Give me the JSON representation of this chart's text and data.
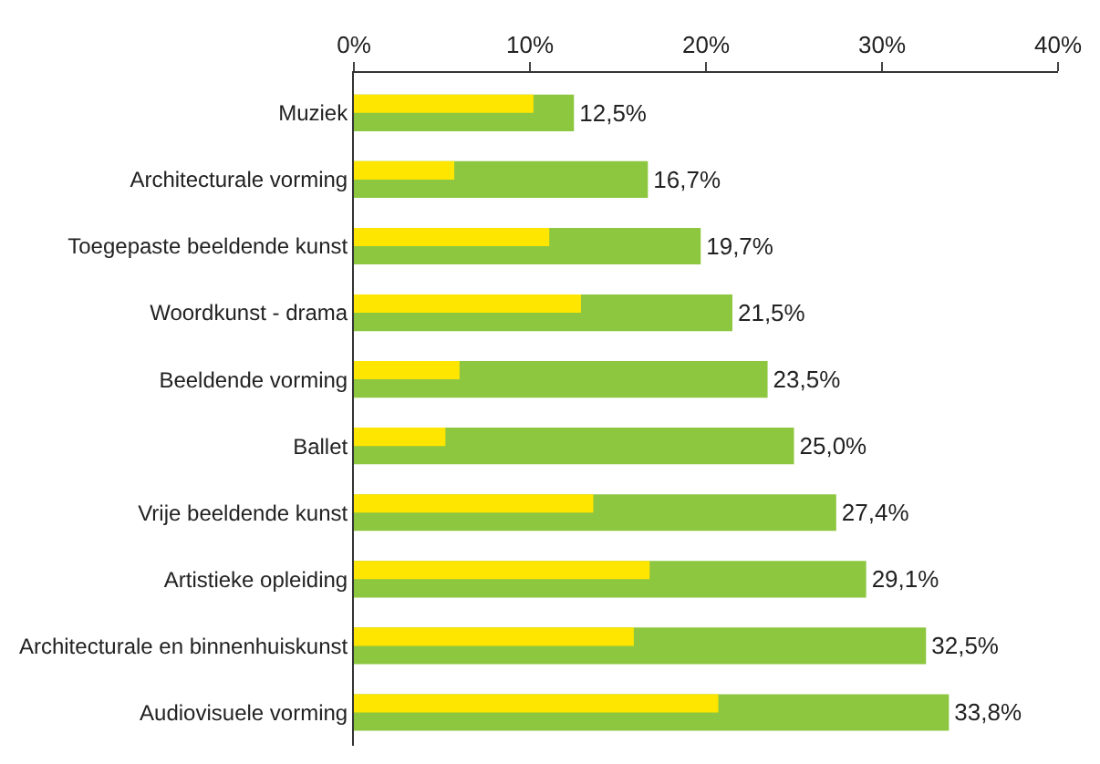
{
  "chart_data": {
    "type": "bar",
    "orientation": "horizontal",
    "categories": [
      "Muziek",
      "Architecturale vorming",
      "Toegepaste beeldende kunst",
      "Woordkunst - drama",
      "Beeldende vorming",
      "Ballet",
      "Vrije beeldende kunst",
      "Artistieke opleiding",
      "Architecturale en binnenhuiskunst",
      "Audiovisuele vorming"
    ],
    "series": [
      {
        "color": "#8dc63f",
        "values": [
          12.5,
          16.7,
          19.7,
          21.5,
          23.5,
          25.0,
          27.4,
          29.1,
          32.5,
          33.8
        ],
        "value_labels": [
          "12,5%",
          "16,7%",
          "19,7%",
          "21,5%",
          "23,5%",
          "25,0%",
          "27,4%",
          "29,1%",
          "32,5%",
          "33,8%"
        ]
      },
      {
        "color": "#ffe600",
        "values": [
          10.2,
          5.7,
          11.1,
          12.9,
          6.0,
          5.2,
          13.6,
          16.8,
          15.9,
          20.7
        ]
      }
    ],
    "xlim": [
      0,
      40
    ],
    "xticks": [
      {
        "value": 0,
        "label": "0%"
      },
      {
        "value": 10,
        "label": "10%"
      },
      {
        "value": 20,
        "label": "20%"
      },
      {
        "value": 30,
        "label": "30%"
      },
      {
        "value": 40,
        "label": "40%"
      }
    ],
    "tick_labels": true
  }
}
